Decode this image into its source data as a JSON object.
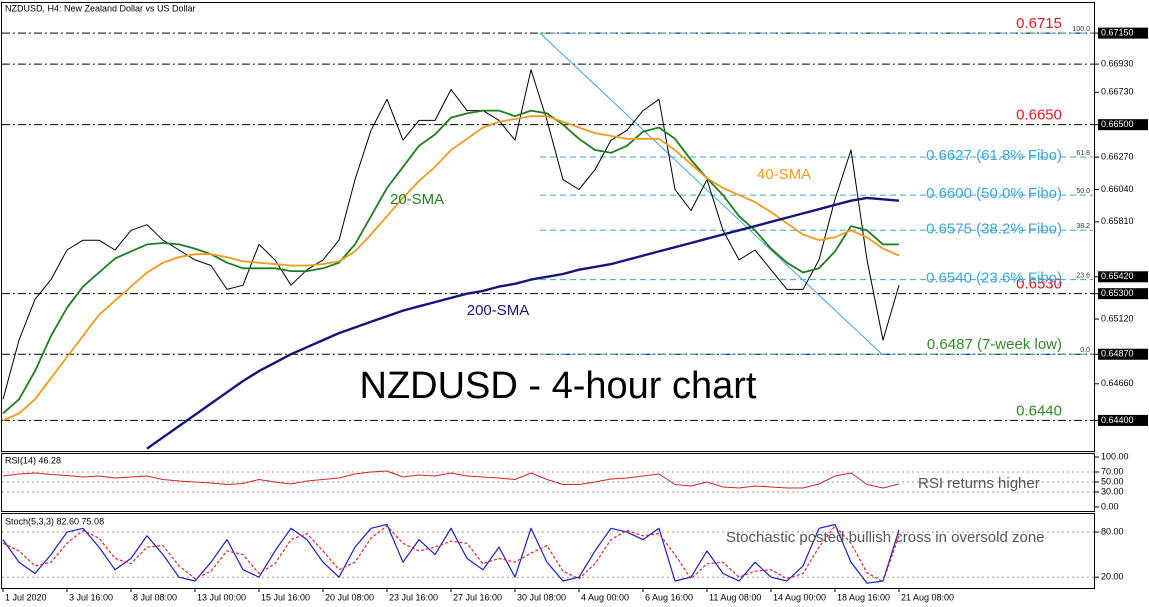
{
  "chart_data": [
    {
      "type": "line",
      "title": "NZDUSD, H4:  New Zealand Dollar vs US Dollar",
      "categories": [
        "1 Jul 2020",
        null,
        null,
        null,
        "3 Jul 16:00",
        null,
        null,
        null,
        "8 Jul 08:00",
        null,
        null,
        null,
        "13 Jul 00:00",
        null,
        null,
        null,
        "15 Jul 16:00",
        null,
        null,
        null,
        "20 Jul 08:00",
        null,
        null,
        null,
        "23 Jul 16:00",
        null,
        null,
        null,
        "27 Jul 16:00",
        null,
        null,
        null,
        "30 Jul 08:00",
        null,
        null,
        null,
        "4 Aug 00:00",
        null,
        null,
        null,
        "6 Aug 16:00",
        null,
        null,
        null,
        "11 Aug 08:00",
        null,
        null,
        null,
        "14 Aug 00:00",
        null,
        null,
        null,
        "18 Aug 16:00",
        null,
        null,
        null,
        "21 Aug 08:00"
      ],
      "series": [
        {
          "color": "#000000",
          "values": [
            0.6455,
            0.6497,
            0.6526,
            0.654,
            0.6561,
            0.6568,
            0.6568,
            0.6561,
            0.6575,
            0.6579,
            0.6568,
            0.6561,
            0.6554,
            0.655,
            0.6533,
            0.6536,
            0.6565,
            0.6554,
            0.6536,
            0.6547,
            0.6554,
            0.6568,
            0.6611,
            0.6646,
            0.6668,
            0.6639,
            0.6653,
            0.6653,
            0.6675,
            0.666,
            0.666,
            0.6653,
            0.6639,
            0.6689,
            0.6653,
            0.6611,
            0.6604,
            0.6618,
            0.6639,
            0.6646,
            0.666,
            0.6668,
            0.6604,
            0.6589,
            0.6611,
            0.6575,
            0.6554,
            0.6561,
            0.6547,
            0.6533,
            0.6533,
            0.6554,
            0.6597,
            0.6632,
            0.6554,
            0.6497,
            0.6536
          ]
        },
        {
          "color": "#1e7d1e",
          "values": [
            0.6445,
            0.6455,
            0.6475,
            0.65,
            0.652,
            0.6535,
            0.6545,
            0.6555,
            0.656,
            0.6565,
            0.6566,
            0.6565,
            0.6562,
            0.6558,
            0.6552,
            0.6548,
            0.6548,
            0.6548,
            0.6546,
            0.6546,
            0.6548,
            0.6552,
            0.6565,
            0.6585,
            0.6605,
            0.662,
            0.6635,
            0.6643,
            0.6655,
            0.6658,
            0.666,
            0.666,
            0.6656,
            0.666,
            0.6658,
            0.665,
            0.664,
            0.6632,
            0.663,
            0.6635,
            0.6645,
            0.6648,
            0.664,
            0.6625,
            0.6612,
            0.66,
            0.6585,
            0.6575,
            0.6562,
            0.6552,
            0.6545,
            0.6548,
            0.656,
            0.6578,
            0.6575,
            0.6565,
            0.6565
          ]
        },
        {
          "color": "#f39a1e",
          "values": [
            0.644,
            0.6445,
            0.6455,
            0.647,
            0.6485,
            0.65,
            0.6515,
            0.6525,
            0.6535,
            0.6545,
            0.6552,
            0.6556,
            0.6558,
            0.6558,
            0.6556,
            0.6553,
            0.6552,
            0.6551,
            0.655,
            0.655,
            0.6551,
            0.6553,
            0.656,
            0.6572,
            0.6585,
            0.6598,
            0.661,
            0.662,
            0.6632,
            0.664,
            0.6648,
            0.6652,
            0.6654,
            0.6656,
            0.6656,
            0.6652,
            0.6648,
            0.6644,
            0.6642,
            0.664,
            0.664,
            0.664,
            0.6632,
            0.6622,
            0.6612,
            0.6605,
            0.66,
            0.6595,
            0.6588,
            0.658,
            0.6572,
            0.6568,
            0.657,
            0.6575,
            0.657,
            0.6562,
            0.6557
          ]
        },
        {
          "color": "#14147a",
          "values": [
            null,
            null,
            null,
            null,
            null,
            null,
            null,
            null,
            null,
            0.642,
            0.6428,
            0.6436,
            0.6444,
            0.6452,
            0.646,
            0.6468,
            0.6475,
            0.6481,
            0.6487,
            0.6492,
            0.6497,
            0.6502,
            0.6506,
            0.651,
            0.6514,
            0.6518,
            0.6521,
            0.6524,
            0.6527,
            0.653,
            0.6532,
            0.6535,
            0.6537,
            0.654,
            0.6542,
            0.6544,
            0.6547,
            0.6549,
            0.6551,
            0.6554,
            0.6557,
            0.656,
            0.6563,
            0.6566,
            0.6569,
            0.6572,
            0.6575,
            0.6578,
            0.6581,
            0.6584,
            0.6587,
            0.659,
            0.6593,
            0.6596,
            0.6598,
            0.6597,
            0.6596
          ]
        }
      ],
      "ylim": [
        0.6419,
        0.673
      ],
      "yticks": [
        {
          "value": 0.6715,
          "label": "0.67150",
          "boxed": true
        },
        {
          "value": 0.6693,
          "label": "0.66930"
        },
        {
          "value": 0.6673,
          "label": "0.66730"
        },
        {
          "value": 0.665,
          "label": "0.66500",
          "boxed": true
        },
        {
          "value": 0.6627,
          "label": "0.66270"
        },
        {
          "value": 0.6604,
          "label": "0.66040"
        },
        {
          "value": 0.6581,
          "label": "0.65810"
        },
        {
          "value": 0.6542,
          "label": "0.65420",
          "boxed": true
        },
        {
          "value": 0.653,
          "label": "0.65300",
          "boxed": true
        },
        {
          "value": 0.6512,
          "label": "0.65120"
        },
        {
          "value": 0.6487,
          "label": "0.64870",
          "boxed": true
        },
        {
          "value": 0.6466,
          "label": "0.64660"
        },
        {
          "value": 0.644,
          "label": "0.64400",
          "boxed": true
        }
      ],
      "grid": false,
      "levels": [
        {
          "value": 0.6715,
          "label": "0.6715",
          "color": "#e8161b"
        },
        {
          "value": 0.6693
        },
        {
          "value": 0.665,
          "label": "0.6650",
          "color": "#e8161b"
        },
        {
          "value": 0.653,
          "label": "0.6530",
          "color": "#e8161b"
        },
        {
          "value": 0.6487,
          "label": "0.6487 (7-week low)",
          "color": "#2e8b22"
        },
        {
          "value": 0.644,
          "label": "0.6440",
          "color": "#2e8b22"
        }
      ],
      "fibo": {
        "color": "#3aa7d9",
        "levels": [
          {
            "value": 0.6715,
            "ratio": "100.0"
          },
          {
            "value": 0.6627,
            "ratio": "61.8",
            "label": "0.6627 (61.8% Fibo)"
          },
          {
            "value": 0.66,
            "ratio": "50.0",
            "label": "0.6600 (50.0% Fibo)"
          },
          {
            "value": 0.6575,
            "ratio": "38.2",
            "label": "0.6575 (38.2% Fibo)"
          },
          {
            "value": 0.654,
            "ratio": "23.6",
            "label": "0.6540 (23.6% Fibo)"
          },
          {
            "value": 0.6487,
            "ratio": "0.0"
          }
        ]
      },
      "annotations": [
        {
          "text": "20-SMA",
          "color": "#1e7d1e"
        },
        {
          "text": "40-SMA",
          "color": "#f39a1e"
        },
        {
          "text": "200-SMA",
          "color": "#14147a"
        },
        {
          "text": "NZDUSD - 4-hour chart",
          "color": "#000000"
        }
      ]
    },
    {
      "type": "line",
      "title": "RSI(14) 46.28",
      "series": [
        {
          "color": "#d0262a",
          "values": [
            62,
            66,
            68,
            65,
            63,
            60,
            62,
            58,
            60,
            62,
            55,
            52,
            50,
            48,
            45,
            47,
            55,
            50,
            46,
            52,
            55,
            58,
            66,
            70,
            72,
            60,
            64,
            62,
            68,
            62,
            60,
            58,
            55,
            68,
            55,
            45,
            45,
            50,
            56,
            58,
            62,
            66,
            45,
            42,
            50,
            40,
            38,
            42,
            40,
            38,
            38,
            46,
            62,
            68,
            45,
            38,
            46
          ]
        }
      ],
      "ylim": [
        0,
        100
      ],
      "yticks": [
        {
          "value": 100,
          "label": "100.00"
        },
        {
          "value": 70,
          "label": "70.00"
        },
        {
          "value": 50,
          "label": "50.00"
        },
        {
          "value": 30,
          "label": "30.00"
        },
        {
          "value": 0,
          "label": "0.00"
        }
      ],
      "grid": true,
      "annotations": [
        {
          "text": "RSI returns higher",
          "color": "#555555"
        }
      ]
    },
    {
      "type": "line",
      "title": "Stoch(5,3,3) 82.60 75.08",
      "series": [
        {
          "color": "#1c1cc8",
          "values": [
            70,
            40,
            25,
            50,
            80,
            85,
            60,
            30,
            45,
            75,
            50,
            20,
            15,
            40,
            70,
            30,
            20,
            55,
            85,
            70,
            40,
            20,
            60,
            85,
            90,
            40,
            70,
            50,
            85,
            45,
            30,
            60,
            20,
            85,
            40,
            15,
            20,
            55,
            85,
            80,
            70,
            85,
            15,
            20,
            55,
            25,
            15,
            40,
            20,
            15,
            35,
            85,
            90,
            40,
            12,
            15,
            82.6
          ]
        },
        {
          "color": "#e0262a",
          "dash": true,
          "values": [
            65,
            55,
            35,
            40,
            65,
            82,
            72,
            45,
            38,
            60,
            62,
            35,
            18,
            28,
            55,
            50,
            25,
            38,
            70,
            78,
            55,
            30,
            40,
            72,
            88,
            65,
            55,
            60,
            68,
            65,
            38,
            45,
            40,
            52,
            62,
            28,
            18,
            38,
            70,
            82,
            75,
            78,
            50,
            18,
            38,
            40,
            20,
            28,
            30,
            18,
            25,
            60,
            88,
            65,
            26,
            14,
            75.08
          ]
        }
      ],
      "ylim": [
        7,
        100
      ],
      "yticks": [
        {
          "value": 80,
          "label": "80.00"
        },
        {
          "value": 20,
          "label": "20.00"
        }
      ],
      "grid": true,
      "annotations": [
        {
          "text": "Stochastic posted bullish cross in oversold zone",
          "color": "#555555"
        }
      ]
    }
  ]
}
